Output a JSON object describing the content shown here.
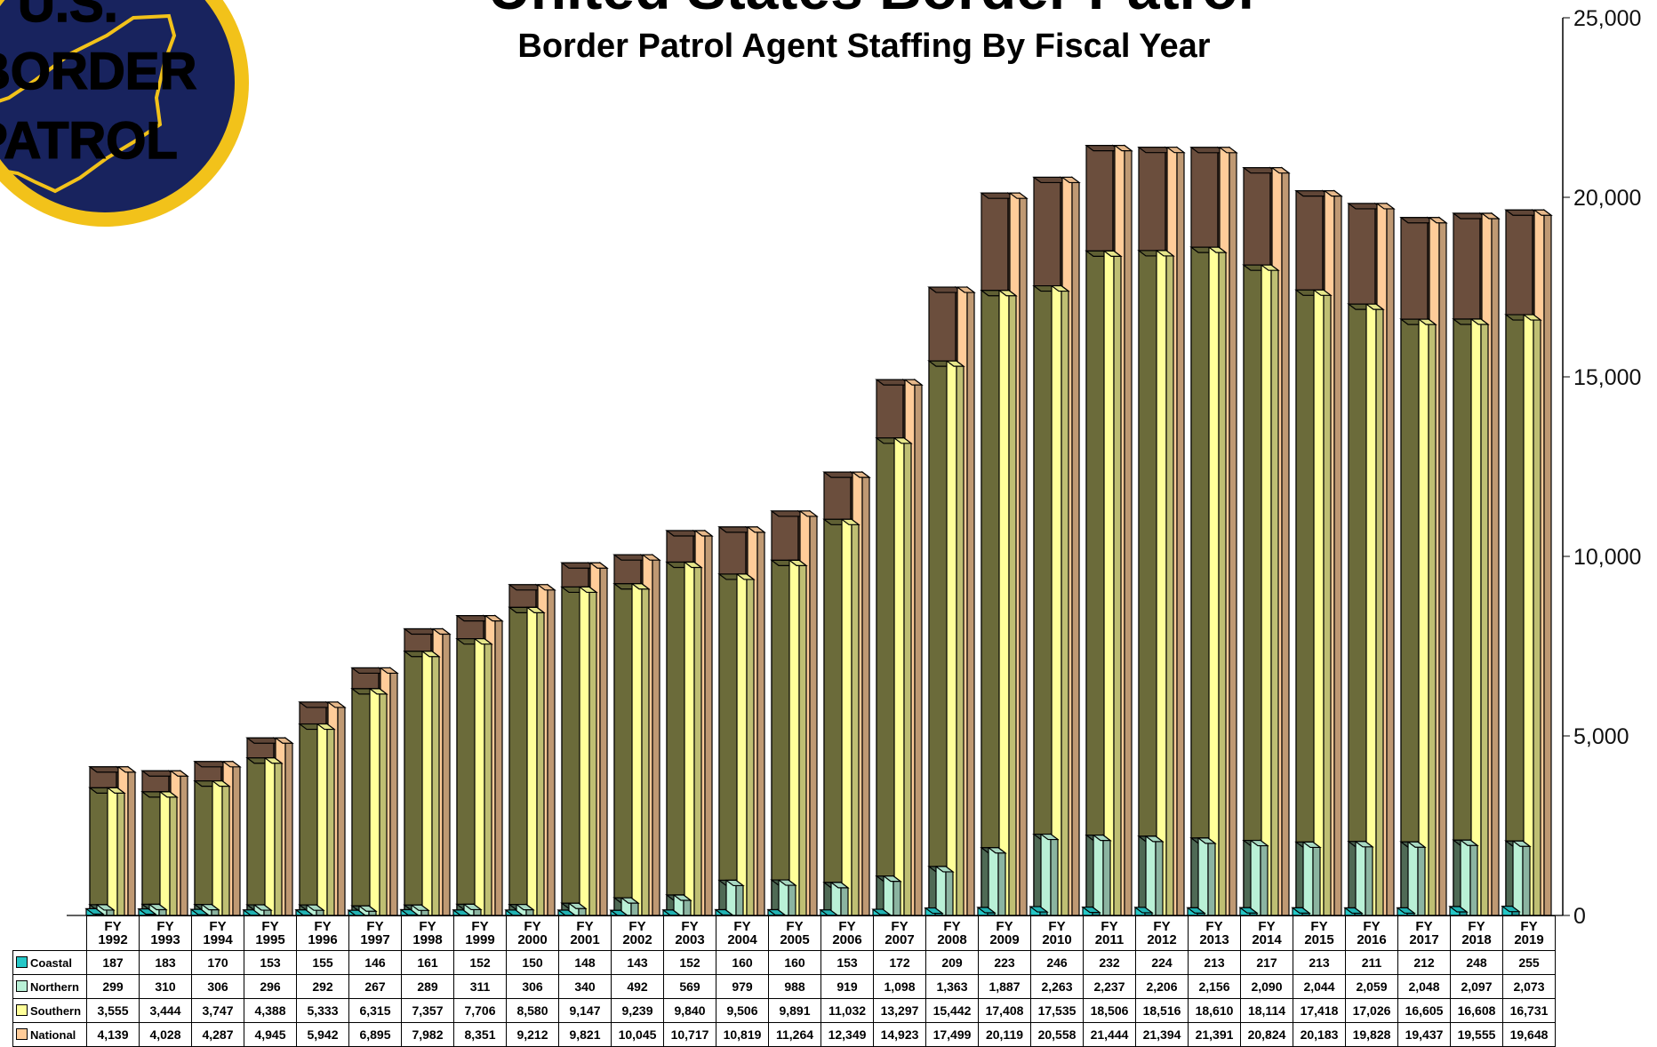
{
  "title": "United States Border Patrol",
  "subtitle": "Border Patrol Agent Staffing By Fiscal Year",
  "logo": {
    "text_lines": [
      "U.S.",
      "BORDER",
      "PATROL"
    ],
    "bg_color": "#18235e",
    "ring_color": "#f2c21a",
    "text_color": "#f2c21a"
  },
  "colors": {
    "coastal": "#25c7c7",
    "northern": "#b9f0d6",
    "southern": "#ffff99",
    "national": "#ffcc99"
  },
  "chart_data": {
    "type": "bar",
    "title": "United States Border Patrol",
    "subtitle": "Border Patrol Agent Staffing By Fiscal Year",
    "categories": [
      "FY 1992",
      "FY 1993",
      "FY 1994",
      "FY 1995",
      "FY 1996",
      "FY 1997",
      "FY 1998",
      "FY 1999",
      "FY 2000",
      "FY 2001",
      "FY 2002",
      "FY 2003",
      "FY 2004",
      "FY 2005",
      "FY 2006",
      "FY 2007",
      "FY 2008",
      "FY 2009",
      "FY 2010",
      "FY 2011",
      "FY 2012",
      "FY 2013",
      "FY 2014",
      "FY 2015",
      "FY 2016",
      "FY 2017",
      "FY 2018",
      "FY 2019"
    ],
    "series": [
      {
        "name": "Coastal",
        "values": [
          "187",
          "183",
          "170",
          "153",
          "155",
          "146",
          "161",
          "152",
          "150",
          "148",
          "143",
          "152",
          "160",
          "160",
          "153",
          "172",
          "209",
          "223",
          "246",
          "232",
          "224",
          "213",
          "217",
          "213",
          "211",
          "212",
          "248",
          "255"
        ]
      },
      {
        "name": "Northern",
        "values": [
          "299",
          "310",
          "306",
          "296",
          "292",
          "267",
          "289",
          "311",
          "306",
          "340",
          "492",
          "569",
          "979",
          "988",
          "919",
          "1,098",
          "1,363",
          "1,887",
          "2,263",
          "2,237",
          "2,206",
          "2,156",
          "2,090",
          "2,044",
          "2,059",
          "2,048",
          "2,097",
          "2,073"
        ]
      },
      {
        "name": "Southern",
        "values": [
          "3,555",
          "3,444",
          "3,747",
          "4,388",
          "5,333",
          "6,315",
          "7,357",
          "7,706",
          "8,580",
          "9,147",
          "9,239",
          "9,840",
          "9,506",
          "9,891",
          "11,032",
          "13,297",
          "15,442",
          "17,408",
          "17,535",
          "18,506",
          "18,516",
          "18,610",
          "18,114",
          "17,418",
          "17,026",
          "16,605",
          "16,608",
          "16,731"
        ]
      },
      {
        "name": "National",
        "values": [
          "4,139",
          "4,028",
          "4,287",
          "4,945",
          "5,942",
          "6,895",
          "7,982",
          "8,351",
          "9,212",
          "9,821",
          "10,045",
          "10,717",
          "10,819",
          "11,264",
          "12,349",
          "14,923",
          "17,499",
          "20,119",
          "20,558",
          "21,444",
          "21,394",
          "21,391",
          "20,824",
          "20,183",
          "19,828",
          "19,437",
          "19,555",
          "19,648"
        ]
      }
    ],
    "yaxis_ticks": [
      "0",
      "5,000",
      "10,000",
      "15,000",
      "20,000",
      "25,000"
    ],
    "ylim": [
      0,
      25000
    ],
    "legend": "table-below",
    "grid": false
  }
}
